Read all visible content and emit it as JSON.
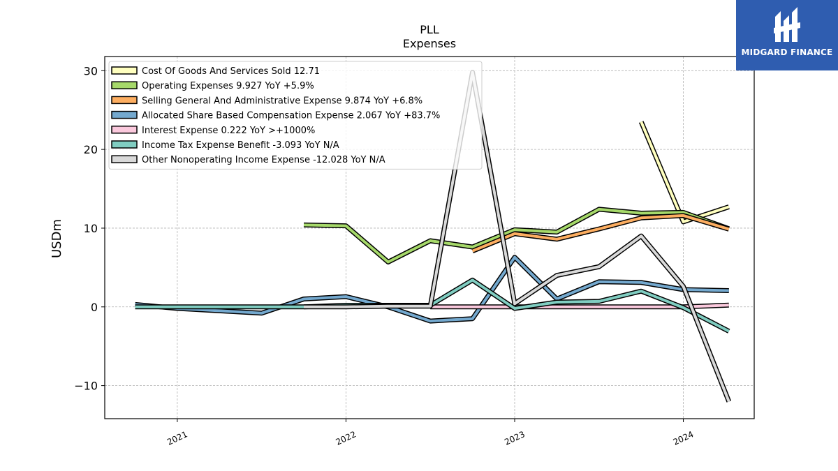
{
  "logo": {
    "text": "MIDGARD FINANCE"
  },
  "chart_data": {
    "type": "line",
    "title": "PLL",
    "subtitle": "Expenses",
    "xlabel": "",
    "ylabel": "USDm",
    "ylim": [
      -14.2,
      31.8
    ],
    "xlim": [
      2020.57,
      2024.42
    ],
    "yticks": [
      -10,
      0,
      10,
      20,
      30
    ],
    "ytick_labels": [
      "−10",
      "0",
      "10",
      "20",
      "30"
    ],
    "xticks": [
      2021,
      2022,
      2023,
      2024
    ],
    "xtick_labels": [
      "2021",
      "2022",
      "2023",
      "2024"
    ],
    "grid": true,
    "legend_position": "top-left",
    "series": [
      {
        "name": "Cost Of Goods And Services Sold  12.71",
        "color": "#ffffbf",
        "points": [
          [
            2023.75,
            23.5
          ],
          [
            2024.0,
            10.8
          ],
          [
            2024.27,
            12.71
          ]
        ]
      },
      {
        "name": "Operating Expenses  9.927 YoY +5.9%",
        "color": "#a6d96a",
        "points": [
          [
            2021.75,
            10.4
          ],
          [
            2022.0,
            10.3
          ],
          [
            2022.25,
            5.7
          ],
          [
            2022.5,
            8.4
          ],
          [
            2022.75,
            7.6
          ],
          [
            2023.0,
            9.8
          ],
          [
            2023.25,
            9.5
          ],
          [
            2023.5,
            12.4
          ],
          [
            2023.75,
            11.9
          ],
          [
            2024.0,
            12.0
          ],
          [
            2024.27,
            9.927
          ]
        ]
      },
      {
        "name": "Selling General And Administrative Expense  9.874 YoY +6.8%",
        "color": "#fdae61",
        "points": [
          [
            2022.75,
            7.1
          ],
          [
            2023.0,
            9.3
          ],
          [
            2023.25,
            8.6
          ],
          [
            2023.5,
            9.9
          ],
          [
            2023.75,
            11.3
          ],
          [
            2024.0,
            11.6
          ],
          [
            2024.27,
            9.874
          ]
        ]
      },
      {
        "name": "Allocated Share Based Compensation Expense  2.067 YoY +83.7%",
        "color": "#74a9cf",
        "points": [
          [
            2020.75,
            0.3
          ],
          [
            2021.0,
            -0.2
          ],
          [
            2021.25,
            -0.5
          ],
          [
            2021.5,
            -0.8
          ],
          [
            2021.75,
            1.0
          ],
          [
            2022.0,
            1.3
          ],
          [
            2022.25,
            0.0
          ],
          [
            2022.5,
            -1.8
          ],
          [
            2022.75,
            -1.5
          ],
          [
            2023.0,
            6.3
          ],
          [
            2023.25,
            1.0
          ],
          [
            2023.5,
            3.2
          ],
          [
            2023.75,
            3.1
          ],
          [
            2024.0,
            2.2
          ],
          [
            2024.27,
            2.067
          ]
        ]
      },
      {
        "name": "Interest Expense  0.222 YoY >+1000%",
        "color": "#fbc9dd",
        "points": [
          [
            2022.5,
            0.0
          ],
          [
            2022.75,
            0.0
          ],
          [
            2023.0,
            0.0
          ],
          [
            2023.25,
            0.0
          ],
          [
            2023.5,
            0.0
          ],
          [
            2023.75,
            0.0
          ],
          [
            2024.0,
            0.0
          ],
          [
            2024.27,
            0.222
          ]
        ]
      },
      {
        "name": "Income Tax Expense Benefit  -3.093 YoY N/A",
        "color": "#80cdc1",
        "points": [
          [
            2020.75,
            0.0
          ],
          [
            2021.0,
            0.0
          ],
          [
            2021.25,
            0.0
          ],
          [
            2021.5,
            0.0
          ],
          [
            2021.75,
            0.0
          ],
          [
            2022.0,
            0.2
          ],
          [
            2022.25,
            0.2
          ],
          [
            2022.5,
            0.2
          ],
          [
            2022.75,
            3.4
          ],
          [
            2023.0,
            -0.2
          ],
          [
            2023.25,
            0.6
          ],
          [
            2023.5,
            0.7
          ],
          [
            2023.75,
            2.0
          ],
          [
            2024.0,
            -0.1
          ],
          [
            2024.27,
            -3.093
          ]
        ]
      },
      {
        "name": "Other Nonoperating Income Expense  -12.028 YoY N/A",
        "color": "#d9d9d9",
        "points": [
          [
            2021.75,
            0.0
          ],
          [
            2022.0,
            0.0
          ],
          [
            2022.25,
            0.1
          ],
          [
            2022.5,
            0.1
          ],
          [
            2022.75,
            29.8
          ],
          [
            2023.0,
            0.4
          ],
          [
            2023.25,
            4.0
          ],
          [
            2023.5,
            5.1
          ],
          [
            2023.75,
            9.0
          ],
          [
            2024.0,
            2.6
          ],
          [
            2024.27,
            -12.028
          ]
        ]
      }
    ]
  }
}
